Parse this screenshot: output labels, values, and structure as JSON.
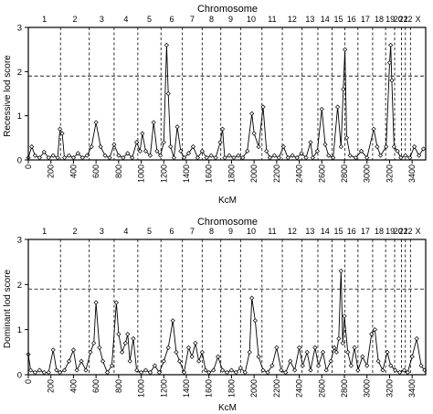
{
  "chart_data": [
    {
      "type": "line",
      "title": "Chromosome",
      "xlabel": "KcM",
      "ylabel": "Recessive lod score",
      "xlim": [
        0,
        3520
      ],
      "ylim": [
        0,
        3
      ],
      "x_ticks": [
        0,
        200,
        400,
        600,
        800,
        1000,
        1200,
        1400,
        1600,
        1800,
        2000,
        2200,
        2400,
        2600,
        2800,
        3000,
        3200,
        3400
      ],
      "y_ticks": [
        0,
        1,
        2,
        3
      ],
      "threshold": 1.9,
      "chromosomes": [
        {
          "label": "1",
          "start": 0,
          "end": 285
        },
        {
          "label": "2",
          "start": 285,
          "end": 540
        },
        {
          "label": "3",
          "start": 540,
          "end": 760
        },
        {
          "label": "4",
          "start": 760,
          "end": 970
        },
        {
          "label": "5",
          "start": 970,
          "end": 1175
        },
        {
          "label": "6",
          "start": 1175,
          "end": 1365
        },
        {
          "label": "7",
          "start": 1365,
          "end": 1540
        },
        {
          "label": "8",
          "start": 1540,
          "end": 1705
        },
        {
          "label": "9",
          "start": 1705,
          "end": 1880
        },
        {
          "label": "10",
          "start": 1880,
          "end": 2070
        },
        {
          "label": "11",
          "start": 2070,
          "end": 2250
        },
        {
          "label": "12",
          "start": 2250,
          "end": 2425
        },
        {
          "label": "13",
          "start": 2425,
          "end": 2565
        },
        {
          "label": "14",
          "start": 2565,
          "end": 2690
        },
        {
          "label": "15",
          "start": 2690,
          "end": 2805
        },
        {
          "label": "16",
          "start": 2805,
          "end": 2920
        },
        {
          "label": "17",
          "start": 2920,
          "end": 3050
        },
        {
          "label": "18",
          "start": 3050,
          "end": 3165
        },
        {
          "label": "19",
          "start": 3165,
          "end": 3245
        },
        {
          "label": "20",
          "start": 3245,
          "end": 3305
        },
        {
          "label": "21",
          "start": 3305,
          "end": 3340
        },
        {
          "label": "22",
          "start": 3340,
          "end": 3385
        },
        {
          "label": "X",
          "start": 3385,
          "end": 3520
        }
      ],
      "series": [
        {
          "values": [
            [
              0,
              0.05
            ],
            [
              30,
              0.3
            ],
            [
              60,
              0.1
            ],
            [
              100,
              0.05
            ],
            [
              140,
              0.18
            ],
            [
              180,
              0.05
            ],
            [
              220,
              0.1
            ],
            [
              260,
              0.05
            ],
            [
              280,
              0.7
            ],
            [
              300,
              0.6
            ],
            [
              320,
              0.05
            ],
            [
              360,
              0.1
            ],
            [
              400,
              0.05
            ],
            [
              440,
              0.15
            ],
            [
              480,
              0.05
            ],
            [
              520,
              0.1
            ],
            [
              560,
              0.3
            ],
            [
              600,
              0.85
            ],
            [
              640,
              0.3
            ],
            [
              680,
              0.1
            ],
            [
              720,
              0.05
            ],
            [
              760,
              0.35
            ],
            [
              800,
              0.1
            ],
            [
              840,
              0.05
            ],
            [
              880,
              0.15
            ],
            [
              920,
              0.05
            ],
            [
              960,
              0.4
            ],
            [
              990,
              0.2
            ],
            [
              1010,
              0.6
            ],
            [
              1040,
              0.2
            ],
            [
              1080,
              0.1
            ],
            [
              1110,
              0.85
            ],
            [
              1140,
              0.2
            ],
            [
              1170,
              0.1
            ],
            [
              1200,
              0.4
            ],
            [
              1225,
              2.6
            ],
            [
              1240,
              1.5
            ],
            [
              1260,
              0.3
            ],
            [
              1290,
              0.05
            ],
            [
              1320,
              0.75
            ],
            [
              1350,
              0.2
            ],
            [
              1380,
              0.05
            ],
            [
              1420,
              0.15
            ],
            [
              1460,
              0.3
            ],
            [
              1500,
              0.05
            ],
            [
              1540,
              0.2
            ],
            [
              1580,
              0.05
            ],
            [
              1620,
              0.1
            ],
            [
              1660,
              0.05
            ],
            [
              1700,
              0.4
            ],
            [
              1720,
              0.7
            ],
            [
              1740,
              0.05
            ],
            [
              1780,
              0.1
            ],
            [
              1820,
              0.05
            ],
            [
              1860,
              0.1
            ],
            [
              1900,
              0.05
            ],
            [
              1940,
              0.2
            ],
            [
              1980,
              1.05
            ],
            [
              2000,
              0.6
            ],
            [
              2040,
              0.3
            ],
            [
              2080,
              1.2
            ],
            [
              2110,
              0.2
            ],
            [
              2140,
              0.05
            ],
            [
              2180,
              0.1
            ],
            [
              2220,
              0.05
            ],
            [
              2260,
              0.3
            ],
            [
              2300,
              0.05
            ],
            [
              2340,
              0.1
            ],
            [
              2380,
              0.05
            ],
            [
              2420,
              0.15
            ],
            [
              2460,
              0.05
            ],
            [
              2500,
              0.4
            ],
            [
              2520,
              0.05
            ],
            [
              2560,
              0.2
            ],
            [
              2600,
              1.15
            ],
            [
              2630,
              0.35
            ],
            [
              2660,
              0.1
            ],
            [
              2700,
              0.05
            ],
            [
              2740,
              1.2
            ],
            [
              2770,
              0.3
            ],
            [
              2790,
              1.6
            ],
            [
              2805,
              2.5
            ],
            [
              2820,
              0.5
            ],
            [
              2850,
              0.1
            ],
            [
              2900,
              0.05
            ],
            [
              2950,
              0.2
            ],
            [
              3000,
              0.05
            ],
            [
              3060,
              0.7
            ],
            [
              3090,
              0.3
            ],
            [
              3120,
              0.1
            ],
            [
              3170,
              0.3
            ],
            [
              3200,
              2.2
            ],
            [
              3210,
              2.6
            ],
            [
              3220,
              1.8
            ],
            [
              3240,
              0.3
            ],
            [
              3270,
              0.2
            ],
            [
              3300,
              0.05
            ],
            [
              3340,
              0.1
            ],
            [
              3380,
              0.05
            ],
            [
              3420,
              0.3
            ],
            [
              3460,
              0.1
            ],
            [
              3500,
              0.25
            ]
          ]
        }
      ]
    },
    {
      "type": "line",
      "title": "Chromosome",
      "xlabel": "KcM",
      "ylabel": "Dominant lod score",
      "xlim": [
        0,
        3520
      ],
      "ylim": [
        0,
        3
      ],
      "x_ticks": [
        0,
        200,
        400,
        600,
        800,
        1000,
        1200,
        1400,
        1600,
        1800,
        2000,
        2200,
        2400,
        2600,
        2800,
        3000,
        3200,
        3400
      ],
      "y_ticks": [
        0,
        1,
        2,
        3
      ],
      "threshold": 1.9,
      "chromosomes": [
        {
          "label": "1",
          "start": 0,
          "end": 285
        },
        {
          "label": "2",
          "start": 285,
          "end": 540
        },
        {
          "label": "3",
          "start": 540,
          "end": 760
        },
        {
          "label": "4",
          "start": 760,
          "end": 970
        },
        {
          "label": "5",
          "start": 970,
          "end": 1175
        },
        {
          "label": "6",
          "start": 1175,
          "end": 1365
        },
        {
          "label": "7",
          "start": 1365,
          "end": 1540
        },
        {
          "label": "8",
          "start": 1540,
          "end": 1705
        },
        {
          "label": "9",
          "start": 1705,
          "end": 1880
        },
        {
          "label": "10",
          "start": 1880,
          "end": 2070
        },
        {
          "label": "11",
          "start": 2070,
          "end": 2250
        },
        {
          "label": "12",
          "start": 2250,
          "end": 2425
        },
        {
          "label": "13",
          "start": 2425,
          "end": 2565
        },
        {
          "label": "14",
          "start": 2565,
          "end": 2690
        },
        {
          "label": "15",
          "start": 2690,
          "end": 2805
        },
        {
          "label": "16",
          "start": 2805,
          "end": 2920
        },
        {
          "label": "17",
          "start": 2920,
          "end": 3050
        },
        {
          "label": "18",
          "start": 3050,
          "end": 3165
        },
        {
          "label": "19",
          "start": 3165,
          "end": 3245
        },
        {
          "label": "20",
          "start": 3245,
          "end": 3305
        },
        {
          "label": "21",
          "start": 3305,
          "end": 3340
        },
        {
          "label": "22",
          "start": 3340,
          "end": 3385
        },
        {
          "label": "X",
          "start": 3385,
          "end": 3520
        }
      ],
      "series": [
        {
          "values": [
            [
              0,
              0.45
            ],
            [
              20,
              0.1
            ],
            [
              60,
              0.05
            ],
            [
              100,
              0.1
            ],
            [
              140,
              0.05
            ],
            [
              180,
              0.05
            ],
            [
              220,
              0.55
            ],
            [
              250,
              0.1
            ],
            [
              280,
              0.05
            ],
            [
              320,
              0.1
            ],
            [
              360,
              0.3
            ],
            [
              400,
              0.55
            ],
            [
              430,
              0.1
            ],
            [
              470,
              0.3
            ],
            [
              510,
              0.1
            ],
            [
              550,
              0.5
            ],
            [
              580,
              0.7
            ],
            [
              600,
              1.6
            ],
            [
              630,
              0.6
            ],
            [
              660,
              0.3
            ],
            [
              700,
              0.05
            ],
            [
              740,
              0.2
            ],
            [
              780,
              1.6
            ],
            [
              800,
              0.9
            ],
            [
              830,
              0.5
            ],
            [
              860,
              0.7
            ],
            [
              880,
              0.9
            ],
            [
              900,
              0.3
            ],
            [
              930,
              0.8
            ],
            [
              960,
              0.1
            ],
            [
              1000,
              0.05
            ],
            [
              1040,
              0.1
            ],
            [
              1080,
              0.05
            ],
            [
              1120,
              0.2
            ],
            [
              1160,
              0.05
            ],
            [
              1200,
              0.3
            ],
            [
              1240,
              0.6
            ],
            [
              1280,
              1.2
            ],
            [
              1310,
              0.5
            ],
            [
              1340,
              0.3
            ],
            [
              1380,
              0.05
            ],
            [
              1420,
              0.6
            ],
            [
              1450,
              0.4
            ],
            [
              1480,
              0.7
            ],
            [
              1510,
              0.3
            ],
            [
              1540,
              0.5
            ],
            [
              1570,
              0.1
            ],
            [
              1600,
              0.05
            ],
            [
              1640,
              0.1
            ],
            [
              1680,
              0.4
            ],
            [
              1720,
              0.1
            ],
            [
              1760,
              0.05
            ],
            [
              1800,
              0.1
            ],
            [
              1840,
              0.05
            ],
            [
              1880,
              0.15
            ],
            [
              1920,
              0.05
            ],
            [
              1960,
              0.5
            ],
            [
              1980,
              1.7
            ],
            [
              2010,
              1.2
            ],
            [
              2040,
              0.4
            ],
            [
              2080,
              0.1
            ],
            [
              2120,
              0.05
            ],
            [
              2160,
              0.2
            ],
            [
              2200,
              0.6
            ],
            [
              2240,
              0.1
            ],
            [
              2280,
              0.05
            ],
            [
              2320,
              0.3
            ],
            [
              2360,
              0.1
            ],
            [
              2400,
              0.6
            ],
            [
              2430,
              0.2
            ],
            [
              2470,
              0.5
            ],
            [
              2500,
              0.1
            ],
            [
              2540,
              0.6
            ],
            [
              2570,
              0.2
            ],
            [
              2610,
              0.5
            ],
            [
              2640,
              0.1
            ],
            [
              2680,
              0.3
            ],
            [
              2710,
              0.6
            ],
            [
              2730,
              0.5
            ],
            [
              2750,
              0.8
            ],
            [
              2770,
              2.3
            ],
            [
              2785,
              0.7
            ],
            [
              2800,
              1.3
            ],
            [
              2830,
              0.5
            ],
            [
              2860,
              0.2
            ],
            [
              2890,
              0.6
            ],
            [
              2920,
              0.1
            ],
            [
              2960,
              0.4
            ],
            [
              3000,
              0.2
            ],
            [
              3040,
              0.9
            ],
            [
              3070,
              1.0
            ],
            [
              3100,
              0.3
            ],
            [
              3140,
              0.1
            ],
            [
              3180,
              0.5
            ],
            [
              3210,
              0.2
            ],
            [
              3250,
              0.1
            ],
            [
              3290,
              0.05
            ],
            [
              3330,
              0.1
            ],
            [
              3360,
              0.05
            ],
            [
              3400,
              0.4
            ],
            [
              3440,
              0.8
            ],
            [
              3480,
              0.2
            ],
            [
              3510,
              0.1
            ]
          ]
        }
      ]
    }
  ]
}
